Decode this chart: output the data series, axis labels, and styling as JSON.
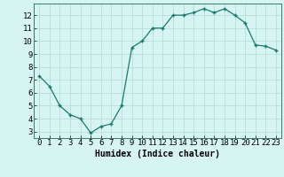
{
  "x": [
    0,
    1,
    2,
    3,
    4,
    5,
    6,
    7,
    8,
    9,
    10,
    11,
    12,
    13,
    14,
    15,
    16,
    17,
    18,
    19,
    20,
    21,
    22,
    23
  ],
  "y": [
    7.3,
    6.5,
    5.0,
    4.3,
    4.0,
    2.9,
    3.4,
    3.6,
    5.0,
    9.5,
    10.0,
    11.0,
    11.0,
    12.0,
    12.0,
    12.2,
    12.5,
    12.2,
    12.5,
    12.0,
    11.4,
    9.7,
    9.6,
    9.3
  ],
  "xlabel": "Humidex (Indice chaleur)",
  "yticks": [
    3,
    4,
    5,
    6,
    7,
    8,
    9,
    10,
    11,
    12
  ],
  "xticks": [
    0,
    1,
    2,
    3,
    4,
    5,
    6,
    7,
    8,
    9,
    10,
    11,
    12,
    13,
    14,
    15,
    16,
    17,
    18,
    19,
    20,
    21,
    22,
    23
  ],
  "ylim": [
    2.5,
    12.9
  ],
  "xlim": [
    -0.5,
    23.5
  ],
  "line_color": "#1a7a6e",
  "marker": "+",
  "bg_color": "#d6f5f2",
  "grid_color": "#b8ddd9",
  "label_fontsize": 7,
  "tick_fontsize": 6.5,
  "xlabel_fontsize": 7
}
